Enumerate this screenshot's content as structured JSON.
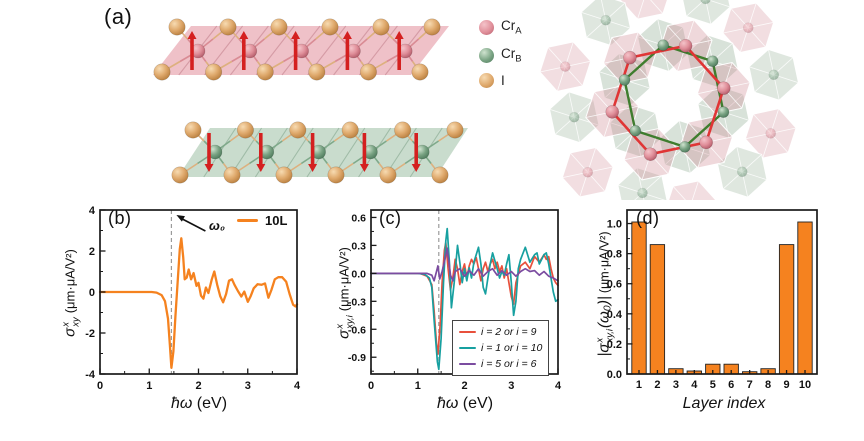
{
  "figure": {
    "panel_a": {
      "label": "(a)",
      "legend": [
        {
          "name": "Cr",
          "sub": "A",
          "hi": "#f4c3c9",
          "mid": "#e08f9a",
          "lo": "#b35b69"
        },
        {
          "name": "Cr",
          "sub": "B",
          "hi": "#cfe3cf",
          "mid": "#79a383",
          "lo": "#4e7a5c"
        },
        {
          "name": "I",
          "sub": "",
          "hi": "#f7dbb2",
          "mid": "#dfa96c",
          "lo": "#b97f3f"
        }
      ],
      "top_layer": {
        "cr_count": 5,
        "i_per_row": 6,
        "arrow": "up",
        "slab_fill": "#eab0b8",
        "facet": "rgba(165,85,100,0.35)",
        "bond_metal": "#d98b94",
        "bond_i": "#ddb07e",
        "arrow_color": "#d42020"
      },
      "bottom_layer": {
        "cr_count": 5,
        "i_per_row": 6,
        "arrow": "down",
        "slab_fill": "#bad2bf",
        "facet": "rgba(80,125,95,0.35)",
        "bond_metal": "#7fa98a",
        "bond_i": "#ddb07e",
        "arrow_color": "#d42020"
      },
      "hex_view": {
        "red_hex": "#e03535",
        "green_hex": "#3f7d2e",
        "pink_octa": "rgba(205,132,143,0.34)",
        "green_octa": "rgba(148,175,150,0.38)"
      }
    }
  },
  "chart_data": [
    {
      "type": "line",
      "panel_label": "(b)",
      "xlabel_italic": "ħω",
      "xlabel_unit": " (eV)",
      "ylabel": {
        "pre": "",
        "sigma": "σ",
        "sup": "x",
        "sub": "xy",
        "post": "",
        "unit": "(μm·μA/V²)"
      },
      "xlim": [
        0,
        4
      ],
      "ylim": [
        -4,
        4
      ],
      "xtick_vals": [
        0,
        1,
        2,
        3,
        4
      ],
      "xtick_labels": [
        "0",
        "1",
        "2",
        "3",
        "4"
      ],
      "xminor": 0.5,
      "ytick_vals": [
        4,
        2,
        0,
        -2,
        -4
      ],
      "ytick_labels": [
        "4",
        "2",
        "0",
        "-2",
        "-4"
      ],
      "yminor": 1,
      "vline": {
        "x": 1.45,
        "label": "ω₀"
      },
      "legend": [
        {
          "label": "10L",
          "color": "#f5821f"
        }
      ],
      "series": [
        {
          "name": "10L",
          "color": "#f5821f",
          "width": 2.3,
          "points": [
            [
              0,
              0
            ],
            [
              0.3,
              0
            ],
            [
              0.6,
              0
            ],
            [
              0.9,
              0
            ],
            [
              1.05,
              0
            ],
            [
              1.15,
              -0.03
            ],
            [
              1.25,
              -0.15
            ],
            [
              1.32,
              -0.45
            ],
            [
              1.38,
              -1.3
            ],
            [
              1.42,
              -2.6
            ],
            [
              1.45,
              -3.7
            ],
            [
              1.49,
              -2.9
            ],
            [
              1.53,
              -1.2
            ],
            [
              1.58,
              0.6
            ],
            [
              1.62,
              2.1
            ],
            [
              1.65,
              2.62
            ],
            [
              1.69,
              1.7
            ],
            [
              1.72,
              0.62
            ],
            [
              1.76,
              0.7
            ],
            [
              1.8,
              1.1
            ],
            [
              1.85,
              0.62
            ],
            [
              1.9,
              0.92
            ],
            [
              1.96,
              0.3
            ],
            [
              2.0,
              0.45
            ],
            [
              2.05,
              -0.18
            ],
            [
              2.1,
              -0.32
            ],
            [
              2.15,
              0.22
            ],
            [
              2.2,
              -0.05
            ],
            [
              2.27,
              0.62
            ],
            [
              2.32,
              1.0
            ],
            [
              2.38,
              0.35
            ],
            [
              2.44,
              -0.2
            ],
            [
              2.5,
              -0.5
            ],
            [
              2.56,
              -0.1
            ],
            [
              2.62,
              0.55
            ],
            [
              2.68,
              0.62
            ],
            [
              2.73,
              0.35
            ],
            [
              2.8,
              0.05
            ],
            [
              2.87,
              -0.22
            ],
            [
              2.93,
              0.02
            ],
            [
              3.0,
              -0.48
            ],
            [
              3.06,
              -0.2
            ],
            [
              3.12,
              0.18
            ],
            [
              3.2,
              0.38
            ],
            [
              3.28,
              0.35
            ],
            [
              3.35,
              0.42
            ],
            [
              3.42,
              -0.28
            ],
            [
              3.48,
              0.1
            ],
            [
              3.55,
              0.62
            ],
            [
              3.62,
              0.72
            ],
            [
              3.7,
              0.72
            ],
            [
              3.78,
              0.5
            ],
            [
              3.85,
              -0.1
            ],
            [
              3.92,
              -0.62
            ],
            [
              3.97,
              -0.7
            ],
            [
              4.0,
              -0.6
            ]
          ]
        }
      ]
    },
    {
      "type": "line",
      "panel_label": "(c)",
      "xlabel_italic": "ħω",
      "xlabel_unit": " (eV)",
      "ylabel": {
        "pre": "",
        "sigma": "σ",
        "sup": "x",
        "sub": "xy,i",
        "post": "",
        "unit": "(μm·μA/V²)"
      },
      "xlim": [
        0,
        4
      ],
      "ylim": [
        -1.08,
        0.68
      ],
      "xtick_vals": [
        0,
        1,
        2,
        3,
        4
      ],
      "xtick_labels": [
        "0",
        "1",
        "2",
        "3",
        "4"
      ],
      "xminor": 0.5,
      "ytick_vals": [
        0.6,
        0.3,
        0,
        -0.3,
        -0.6,
        -0.9
      ],
      "ytick_labels": [
        "0.6",
        "0.3",
        "0.0",
        "-0.3",
        "-0.6",
        "-0.9"
      ],
      "yminor": 0.15,
      "vline": {
        "x": 1.45,
        "label": ""
      },
      "legend": [
        {
          "label": "i = 2 or i = 9",
          "color": "#e8503c"
        },
        {
          "label": "i = 1 or i = 10",
          "color": "#17a0a0"
        },
        {
          "label": "i = 5 or i = 6",
          "color": "#7b4ca0"
        }
      ],
      "series": [
        {
          "name": "i = 2 or i = 9",
          "color": "#e8503c",
          "width": 1.7,
          "points": [
            [
              0,
              0
            ],
            [
              1.05,
              0
            ],
            [
              1.2,
              -0.03
            ],
            [
              1.3,
              -0.12
            ],
            [
              1.35,
              -0.4
            ],
            [
              1.4,
              -0.75
            ],
            [
              1.43,
              -0.87
            ],
            [
              1.48,
              -0.55
            ],
            [
              1.52,
              -0.1
            ],
            [
              1.57,
              0.25
            ],
            [
              1.6,
              0.33
            ],
            [
              1.65,
              0.05
            ],
            [
              1.7,
              -0.18
            ],
            [
              1.75,
              -0.05
            ],
            [
              1.8,
              0.15
            ],
            [
              1.85,
              0.05
            ],
            [
              1.9,
              -0.12
            ],
            [
              1.95,
              0.02
            ],
            [
              2.0,
              0.1
            ],
            [
              2.05,
              -0.05
            ],
            [
              2.1,
              0.08
            ],
            [
              2.15,
              0.15
            ],
            [
              2.2,
              0.1
            ],
            [
              2.25,
              0.17
            ],
            [
              2.3,
              0.05
            ],
            [
              2.35,
              -0.08
            ],
            [
              2.4,
              0.05
            ],
            [
              2.45,
              0.12
            ],
            [
              2.5,
              0.02
            ],
            [
              2.55,
              0.1
            ],
            [
              2.6,
              0.15
            ],
            [
              2.65,
              0.05
            ],
            [
              2.7,
              0.12
            ],
            [
              2.75,
              0.02
            ],
            [
              2.8,
              0.08
            ],
            [
              2.85,
              -0.05
            ],
            [
              2.9,
              0.05
            ],
            [
              2.95,
              -0.1
            ],
            [
              3.0,
              -0.25
            ],
            [
              3.05,
              -0.33
            ],
            [
              3.1,
              -0.1
            ],
            [
              3.2,
              0.08
            ],
            [
              3.3,
              0.12
            ],
            [
              3.4,
              0.05
            ],
            [
              3.5,
              0.18
            ],
            [
              3.6,
              0.12
            ],
            [
              3.7,
              0.2
            ],
            [
              3.75,
              0.15
            ],
            [
              3.8,
              0.18
            ],
            [
              3.85,
              0.05
            ],
            [
              3.9,
              -0.05
            ],
            [
              3.95,
              -0.1
            ],
            [
              4.0,
              -0.13
            ]
          ]
        },
        {
          "name": "i = 1 or i = 10",
          "color": "#17a0a0",
          "width": 1.7,
          "points": [
            [
              0,
              0
            ],
            [
              1.0,
              0
            ],
            [
              1.15,
              -0.01
            ],
            [
              1.25,
              -0.05
            ],
            [
              1.3,
              -0.15
            ],
            [
              1.35,
              -0.5
            ],
            [
              1.42,
              -0.95
            ],
            [
              1.45,
              -1.03
            ],
            [
              1.5,
              -0.7
            ],
            [
              1.55,
              -0.1
            ],
            [
              1.6,
              0.35
            ],
            [
              1.63,
              0.48
            ],
            [
              1.68,
              0.1
            ],
            [
              1.72,
              -0.37
            ],
            [
              1.78,
              -0.1
            ],
            [
              1.85,
              0.3
            ],
            [
              1.9,
              0.12
            ],
            [
              1.95,
              -0.1
            ],
            [
              2.0,
              0.05
            ],
            [
              2.05,
              -0.08
            ],
            [
              2.1,
              0.06
            ],
            [
              2.15,
              -0.05
            ],
            [
              2.2,
              0.12
            ],
            [
              2.3,
              0.28
            ],
            [
              2.35,
              0.1
            ],
            [
              2.4,
              -0.15
            ],
            [
              2.45,
              -0.22
            ],
            [
              2.5,
              -0.05
            ],
            [
              2.55,
              0.1
            ],
            [
              2.6,
              0.22
            ],
            [
              2.7,
              0.05
            ],
            [
              2.75,
              -0.05
            ],
            [
              2.8,
              0.02
            ],
            [
              2.85,
              -0.02
            ],
            [
              2.9,
              0.1
            ],
            [
              2.95,
              0.2
            ],
            [
              3.0,
              -0.1
            ],
            [
              3.05,
              -0.45
            ],
            [
              3.1,
              -0.3
            ],
            [
              3.15,
              0.05
            ],
            [
              3.2,
              0.15
            ],
            [
              3.3,
              0.28
            ],
            [
              3.4,
              0.12
            ],
            [
              3.5,
              0.2
            ],
            [
              3.55,
              0.22
            ],
            [
              3.6,
              0.1
            ],
            [
              3.7,
              0.2
            ],
            [
              3.75,
              0.22
            ],
            [
              3.8,
              0.1
            ],
            [
              3.85,
              -0.05
            ],
            [
              3.9,
              -0.2
            ],
            [
              3.95,
              -0.3
            ],
            [
              4.0,
              -0.28
            ]
          ]
        },
        {
          "name": "i = 5 or i = 6",
          "color": "#7b4ca0",
          "width": 1.7,
          "points": [
            [
              0,
              0
            ],
            [
              1.2,
              0
            ],
            [
              1.3,
              -0.02
            ],
            [
              1.35,
              -0.08
            ],
            [
              1.4,
              0.02
            ],
            [
              1.43,
              0.08
            ],
            [
              1.47,
              -0.06
            ],
            [
              1.52,
              0.02
            ],
            [
              1.58,
              0.15
            ],
            [
              1.63,
              0.27
            ],
            [
              1.7,
              -0.02
            ],
            [
              1.75,
              -0.08
            ],
            [
              1.8,
              0.02
            ],
            [
              1.9,
              0.05
            ],
            [
              2.0,
              -0.03
            ],
            [
              2.1,
              0.03
            ],
            [
              2.2,
              -0.02
            ],
            [
              2.3,
              0.05
            ],
            [
              2.4,
              -0.03
            ],
            [
              2.5,
              0.02
            ],
            [
              2.6,
              0.05
            ],
            [
              2.7,
              -0.02
            ],
            [
              2.8,
              0.03
            ],
            [
              2.9,
              -0.02
            ],
            [
              3.0,
              0.02
            ],
            [
              3.1,
              -0.03
            ],
            [
              3.2,
              0.02
            ],
            [
              3.3,
              0.05
            ],
            [
              3.4,
              0.02
            ],
            [
              3.5,
              0.03
            ],
            [
              3.6,
              -0.02
            ],
            [
              3.7,
              0.02
            ],
            [
              3.8,
              -0.03
            ],
            [
              3.9,
              -0.05
            ],
            [
              4.0,
              -0.08
            ]
          ]
        }
      ]
    },
    {
      "type": "bar",
      "panel_label": "(d)",
      "xlabel_italic": "Layer index",
      "xlabel_unit": "",
      "ylabel": {
        "pre": "|",
        "sigma": "σ",
        "sup": "x",
        "sub": "xy,i",
        "post": "(ω₀)|",
        "unit": " (μm·μA/V²)"
      },
      "xlim": [
        0.35,
        10.65
      ],
      "ylim": [
        0,
        1.09
      ],
      "categories": [
        "1",
        "2",
        "3",
        "4",
        "5",
        "6",
        "7",
        "8",
        "9",
        "10"
      ],
      "values": [
        1.01,
        0.86,
        0.035,
        0.02,
        0.065,
        0.065,
        0.015,
        0.035,
        0.86,
        1.01
      ],
      "bar_color": "#f5821f",
      "bar_width": 0.78,
      "ytick_vals": [
        1.0,
        0.8,
        0.6,
        0.4,
        0.2,
        0.0
      ],
      "ytick_labels": [
        "1.0",
        "0.8",
        "0.6",
        "0.4",
        "0.2",
        "0.0"
      ],
      "yminor": 0.1
    }
  ]
}
